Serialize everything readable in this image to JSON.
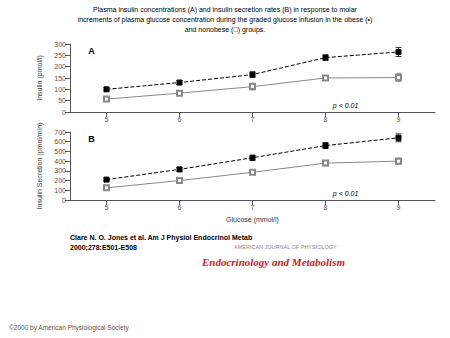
{
  "title": "Plasma insulin concentrations (A) and insulin secretion rates (B) in response to molar\nincrements of plasma glucose concentration during the graded glucose infusion in the obese (•)\nand nonobese (□) groups.",
  "annotations": [
    "Clare N. O. Jones et al. Am J Physiol Endocrinol Metab\n2000;278:E501-E508",
    "AMERICAN JOURNAL OF PHYSIOLOGY",
    "Endocrinology and Metabolism",
    "©2000 by American Physiological Society"
  ],
  "chart_data": [
    {
      "type": "line",
      "annotations": [
        "A",
        "p < 0.01"
      ],
      "ylabel": "Insulin (pmol/l)",
      "xlim": [
        4.5,
        9.5
      ],
      "xticks": [
        5,
        6,
        7,
        8,
        9
      ],
      "ylim": [
        0,
        300
      ],
      "yticks": [
        0,
        50,
        100,
        150,
        200,
        250,
        300
      ],
      "grid": false,
      "x": [
        5,
        6,
        7,
        8,
        9
      ],
      "series": [
        {
          "color": "#000000",
          "marker": "square",
          "line_style": "dashed",
          "values": [
            100,
            130,
            165,
            240,
            265
          ],
          "yerr": [
            8,
            8,
            12,
            12,
            20
          ]
        },
        {
          "color": "#888888",
          "marker": "open square",
          "line_style": "solid",
          "values": [
            57,
            83,
            112,
            150,
            152
          ],
          "yerr": [
            7,
            9,
            15,
            10,
            18
          ]
        }
      ]
    },
    {
      "type": "line",
      "annotations": [
        "B",
        "p < 0.01"
      ],
      "xlabel": "Glucose (mmol/l)",
      "ylabel": "Insulin Secretion (pmol/min)",
      "xlim": [
        4.5,
        9.5
      ],
      "xticks": [
        5,
        6,
        7,
        8,
        9
      ],
      "ylim": [
        0,
        700
      ],
      "yticks": [
        0,
        100,
        200,
        300,
        400,
        500,
        600,
        700
      ],
      "grid": false,
      "x": [
        5,
        6,
        7,
        8,
        9
      ],
      "series": [
        {
          "color": "#000000",
          "marker": "square",
          "line_style": "dashed",
          "values": [
            210,
            315,
            435,
            560,
            640
          ],
          "yerr": [
            15,
            20,
            25,
            30,
            40
          ]
        },
        {
          "color": "#888888",
          "marker": "open square",
          "line_style": "solid",
          "values": [
            125,
            200,
            285,
            380,
            400
          ],
          "yerr": [
            12,
            18,
            22,
            28,
            32
          ]
        }
      ]
    }
  ]
}
